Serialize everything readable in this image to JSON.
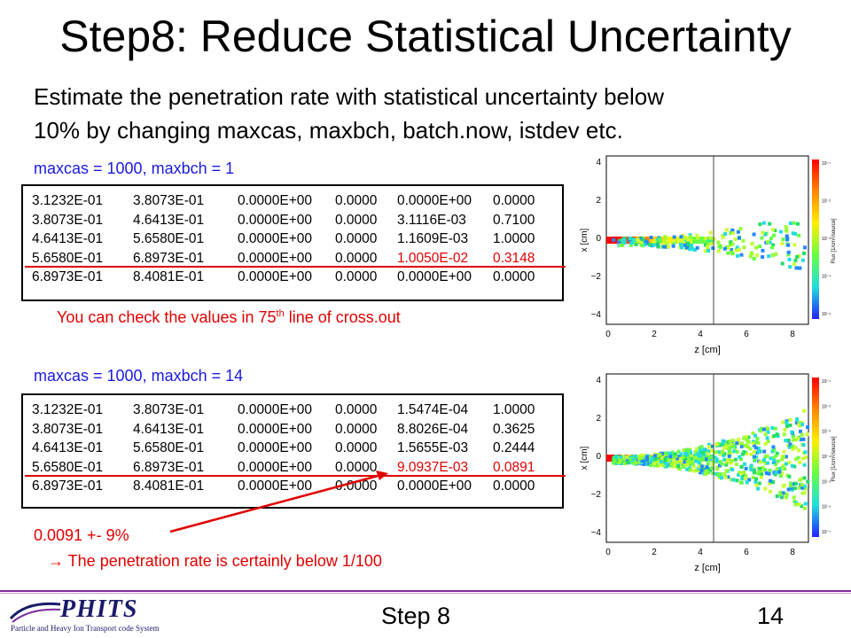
{
  "slide": {
    "title": "Step8: Reduce Statistical Uncertainty",
    "subtitle_line1": "Estimate the penetration rate with statistical uncertainty below",
    "subtitle_line2": "10% by changing maxcas, maxbch, batch.now, istdev etc."
  },
  "case1": {
    "label": "maxcas = 1000, maxbch = 1",
    "rows": [
      [
        "3.1232E-01",
        "3.8073E-01",
        "0.0000E+00",
        "0.0000",
        "0.0000E+00",
        "0.0000"
      ],
      [
        "3.8073E-01",
        "4.6413E-01",
        "0.0000E+00",
        "0.0000",
        "3.1116E-03",
        "0.7100"
      ],
      [
        "4.6413E-01",
        "5.6580E-01",
        "0.0000E+00",
        "0.0000",
        "1.1609E-03",
        "1.0000"
      ],
      [
        "5.6580E-01",
        "6.8973E-01",
        "0.0000E+00",
        "0.0000",
        "1.0050E-02",
        "0.3148"
      ],
      [
        "6.8973E-01",
        "8.4081E-01",
        "0.0000E+00",
        "0.0000",
        "0.0000E+00",
        "0.0000"
      ]
    ],
    "note_prefix": "You can check the values in 75",
    "note_sup": "th",
    "note_suffix": " line of cross.out"
  },
  "case2": {
    "label": "maxcas = 1000, maxbch = 14",
    "rows": [
      [
        "3.1232E-01",
        "3.8073E-01",
        "0.0000E+00",
        "0.0000",
        "1.5474E-04",
        "1.0000"
      ],
      [
        "3.8073E-01",
        "4.6413E-01",
        "0.0000E+00",
        "0.0000",
        "8.8026E-04",
        "0.3625"
      ],
      [
        "4.6413E-01",
        "5.6580E-01",
        "0.0000E+00",
        "0.0000",
        "1.5655E-03",
        "0.2444"
      ],
      [
        "5.6580E-01",
        "6.8973E-01",
        "0.0000E+00",
        "0.0000",
        "9.0937E-03",
        "0.0891"
      ],
      [
        "6.8973E-01",
        "8.4081E-01",
        "0.0000E+00",
        "0.0000",
        "0.0000E+00",
        "0.0000"
      ]
    ],
    "result": "0.0091 +- 9%",
    "conclusion": "→ The penetration rate is certainly below 1/100"
  },
  "plot1": {
    "y_ticks": [
      "4",
      "2",
      "0",
      "−2",
      "−4"
    ],
    "x_ticks": [
      "0",
      "2",
      "4",
      "6",
      "8"
    ],
    "xlabel": "z [cm]",
    "ylabel": "x [cm]",
    "cbar_ticks": [
      "10⁻¹",
      "10⁻²",
      "10⁻³",
      "10⁻⁴",
      "10⁻⁵"
    ],
    "cbar_label": "Flux [1/cm²/source]"
  },
  "plot2": {
    "y_ticks": [
      "4",
      "2",
      "0",
      "−2",
      "−4"
    ],
    "x_ticks": [
      "0",
      "2",
      "4",
      "6",
      "8"
    ],
    "xlabel": "z [cm]",
    "ylabel": "x [cm]",
    "cbar_ticks": [
      "10⁻¹",
      "10⁻²",
      "10⁻³",
      "10⁻⁴",
      "10⁻⁵",
      "10⁻⁶",
      "10⁻⁷"
    ],
    "cbar_label": "Flux [1/cm²/source]"
  },
  "footer": {
    "logo_text": "PHITS",
    "logo_sub": "Particle and Heavy Ion Transport code System",
    "center": "Step 8",
    "page": "14"
  },
  "colors": {
    "accent_red": "#e00000",
    "label_blue": "#1a1adc",
    "footer_purple": "#7a2b9a"
  }
}
